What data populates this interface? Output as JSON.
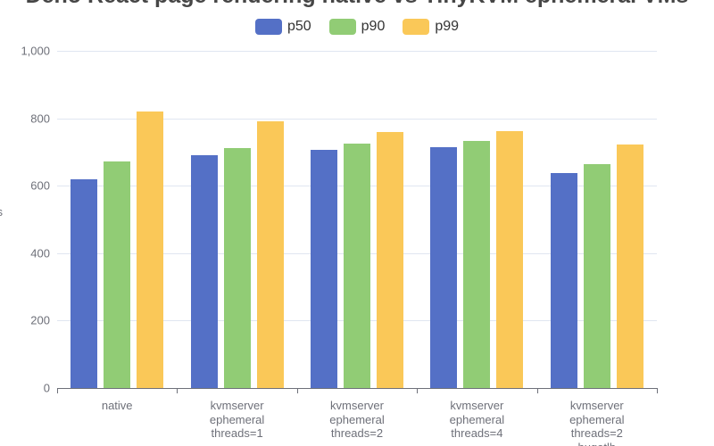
{
  "chart_data": {
    "type": "bar",
    "title": "Deno React page rendering native vs TinyKVM ephemeral VMs",
    "ylabel": "µs",
    "ylim": [
      0,
      1000
    ],
    "grid": true,
    "legend_position": "top",
    "yticks": {
      "values": [
        0,
        200,
        400,
        600,
        800,
        1000
      ],
      "labels": [
        "0",
        "200",
        "400",
        "600",
        "800",
        "1,000"
      ]
    },
    "categories": [
      [
        "native"
      ],
      [
        "kvmserver",
        "ephemeral",
        "threads=1"
      ],
      [
        "kvmserver",
        "ephemeral",
        "threads=2"
      ],
      [
        "kvmserver",
        "ephemeral",
        "threads=4"
      ],
      [
        "kvmserver",
        "ephemeral",
        "threads=2",
        "hugetlb"
      ]
    ],
    "series": [
      {
        "name": "p50",
        "color": "#5470C6",
        "values": [
          620,
          690,
          707,
          714,
          637
        ]
      },
      {
        "name": "p90",
        "color": "#91CC75",
        "values": [
          672,
          712,
          725,
          732,
          664
        ]
      },
      {
        "name": "p99",
        "color": "#FAC858",
        "values": [
          820,
          792,
          758,
          762,
          723
        ]
      }
    ]
  },
  "colors": {
    "title_text": "#464646",
    "legend_text": "#333333",
    "axis_text": "#6E7079",
    "gridline": "#E0E6F1",
    "axis_line": "#6E7079",
    "background": "#FFFFFF"
  }
}
